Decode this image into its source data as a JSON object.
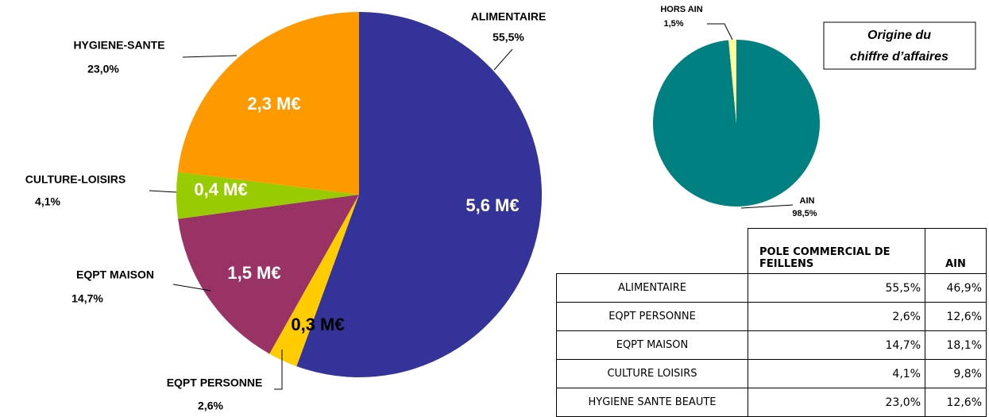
{
  "chart_data": [
    {
      "type": "pie",
      "categories": [
        "ALIMENTAIRE",
        "EQPT PERSONNE",
        "EQPT MAISON",
        "CULTURE-LOISIRS",
        "HYGIENE-SANTE"
      ],
      "values": [
        55.5,
        2.6,
        14.7,
        4.1,
        23.0
      ],
      "value_labels": [
        "55,5%",
        "2,6%",
        "14,7%",
        "4,1%",
        "23,0%"
      ],
      "amount_labels": [
        "5,6 M€",
        "0,3 M€",
        "1,5 M€",
        "0,4 M€",
        "2,3 M€"
      ],
      "colors": [
        "#333399",
        "#ffcc00",
        "#993366",
        "#99cc00",
        "#ff9900"
      ]
    },
    {
      "type": "pie",
      "title_lines": [
        "Origine du",
        "chiffre d’affaires"
      ],
      "categories": [
        "AIN",
        "HORS AIN"
      ],
      "values": [
        98.5,
        1.5
      ],
      "value_labels": [
        "98,5%",
        "1,5%"
      ],
      "colors": [
        "#008080",
        "#ffff99"
      ]
    }
  ],
  "table": {
    "header": [
      "POLE COMMERCIAL DE FEILLENS",
      "AIN"
    ],
    "rows": [
      [
        "ALIMENTAIRE",
        "55,5%",
        "46,9%"
      ],
      [
        "EQPT PERSONNE",
        "2,6%",
        "12,6%"
      ],
      [
        "EQPT MAISON",
        "14,7%",
        "18,1%"
      ],
      [
        "CULTURE LOISIRS",
        "4,1%",
        "9,8%"
      ],
      [
        "HYGIENE SANTE BEAUTE",
        "23,0%",
        "12,6%"
      ]
    ]
  }
}
